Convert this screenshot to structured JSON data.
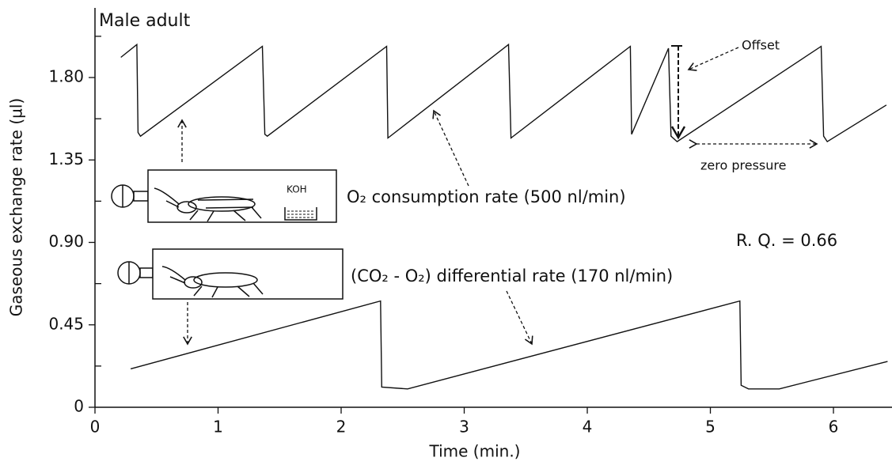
{
  "chart_data": {
    "type": "line",
    "xlabel": "Time (min.)",
    "ylabel": "Gaseous exchange rate (µl)",
    "xlim": [
      0,
      6.45
    ],
    "ylim": [
      0,
      2.18
    ],
    "xticks": [
      0,
      1,
      2,
      3,
      4,
      5,
      6
    ],
    "yticks": [
      0,
      0.45,
      {
        "value": 0.9,
        "label": "0.90"
      },
      1.35,
      {
        "value": 1.8,
        "label": "1.80"
      }
    ],
    "yminorticks": [
      0.225,
      0.675,
      1.125,
      1.575,
      2.025
    ],
    "series": [
      {
        "color": "#111111",
        "x": [
          0.21,
          0.34,
          0.35,
          0.37,
          1.36,
          1.38,
          1.4,
          2.37,
          2.38,
          3.36,
          3.38,
          4.35,
          4.36,
          4.66,
          4.68,
          4.73,
          5.9,
          5.92,
          5.95,
          6.43
        ],
        "values": [
          1.91,
          1.98,
          1.5,
          1.48,
          1.97,
          1.49,
          1.48,
          1.97,
          1.47,
          1.98,
          1.47,
          1.97,
          1.49,
          1.96,
          1.48,
          1.45,
          1.97,
          1.48,
          1.45,
          1.65
        ]
      },
      {
        "color": "#111111",
        "x": [
          0.29,
          2.32,
          2.33,
          2.54,
          5.24,
          5.25,
          5.31,
          5.56,
          6.44
        ],
        "values": [
          0.21,
          0.58,
          0.11,
          0.1,
          0.58,
          0.12,
          0.1,
          0.1,
          0.25
        ]
      }
    ],
    "annotations": [
      {
        "text": "Male  adult"
      },
      {
        "text": "Offset"
      },
      {
        "text": "zero pressure"
      },
      {
        "text": "O₂ consumption rate (500 nl/min)"
      },
      {
        "text": "R. Q. = 0.66"
      },
      {
        "text": "(CO₂ - O₂) differential rate (170 nl/min)"
      },
      {
        "text": "KOH"
      }
    ]
  }
}
